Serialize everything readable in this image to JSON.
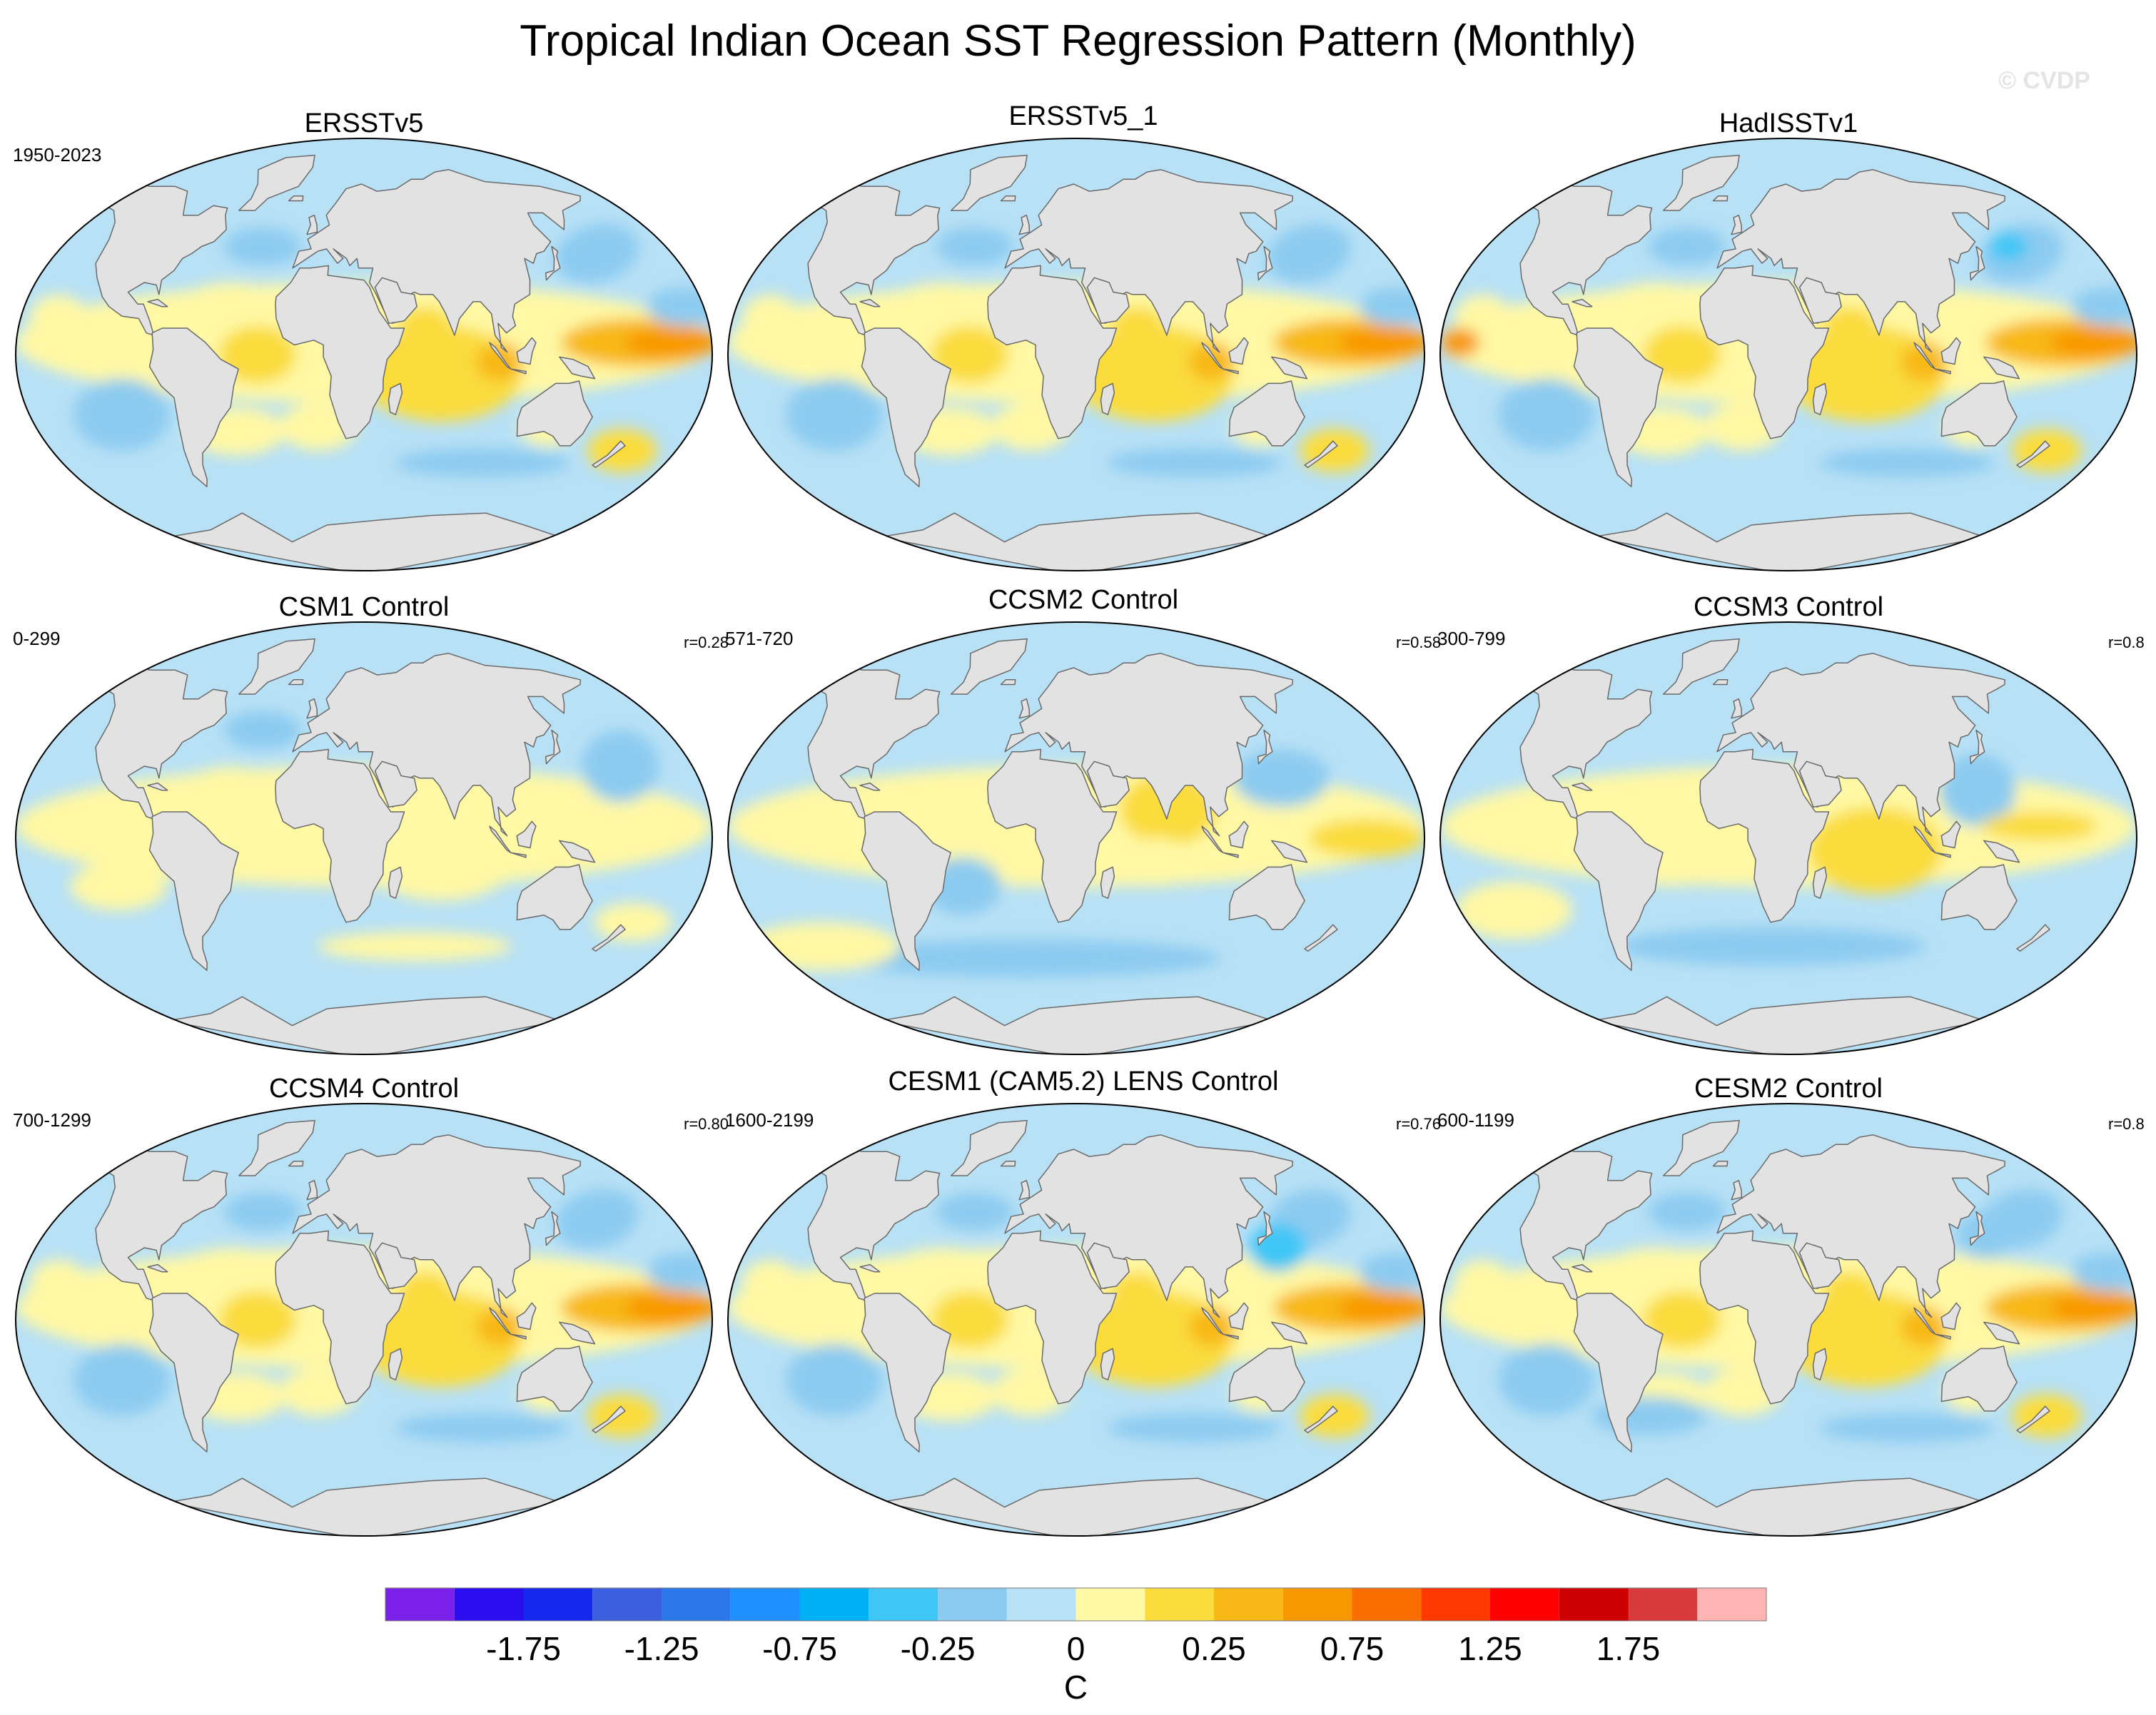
{
  "title": "Tropical Indian Ocean SST Regression Pattern (Monthly)",
  "watermark": "© CVDP",
  "panels": [
    {
      "title": "ERSSTv5",
      "years": "1950-2023",
      "corr": "",
      "variant": 0
    },
    {
      "title": "ERSSTv5_1",
      "years": "",
      "corr": "",
      "variant": 0
    },
    {
      "title": "HadISSTv1",
      "years": "",
      "corr": "",
      "variant": 1
    },
    {
      "title": "CSM1 Control",
      "years": "0-299",
      "corr": "r=0.28",
      "variant": 2
    },
    {
      "title": "CCSM2 Control",
      "years": "571-720",
      "corr": "r=0.58",
      "variant": 3
    },
    {
      "title": "CCSM3 Control",
      "years": "300-799",
      "corr": "r=0.8",
      "variant": 4
    },
    {
      "title": "CCSM4 Control",
      "years": "700-1299",
      "corr": "r=0.80",
      "variant": 5
    },
    {
      "title": "CESM1 (CAM5.2) LENS Control",
      "years": "1600-2199",
      "corr": "r=0.76",
      "variant": 6
    },
    {
      "title": "CESM2 Control",
      "years": "600-1199",
      "corr": "r=0.8",
      "variant": 7
    }
  ],
  "colorbar": {
    "unit": "C",
    "tick_labels": [
      "-1.75",
      "-1.25",
      "-0.75",
      "-0.25",
      "0",
      "0.25",
      "0.75",
      "1.25",
      "1.75"
    ],
    "colors": [
      "#7b20e9",
      "#2b0ef0",
      "#1428ee",
      "#3c5fe0",
      "#2b78ea",
      "#1e90ff",
      "#00b0f5",
      "#3fc6f6",
      "#8ccbf0",
      "#b8e1f6",
      "#fff8a4",
      "#fadc3c",
      "#f8b818",
      "#f89800",
      "#fa6e00",
      "#ff3a00",
      "#ff0000",
      "#cc0000",
      "#d83b3b",
      "#ffb4b4"
    ]
  },
  "map_colors": {
    "land": "#e2e2e2",
    "coast": "#6a6a6a",
    "ocean_base": "#b8e1f6"
  }
}
